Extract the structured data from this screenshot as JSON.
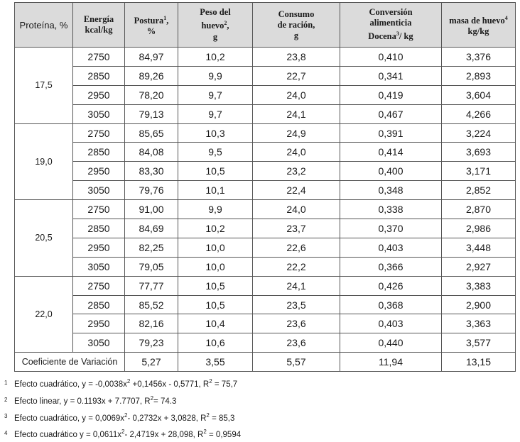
{
  "headers": {
    "protein": "Proteína, %",
    "energy_l1": "Energía",
    "energy_l2": "kcal/kg",
    "laying_l1": "Postura",
    "laying_sup": "1",
    "laying_l2": "%",
    "eggweight_l1": "Peso del",
    "eggweight_l2": "huevo",
    "eggweight_sup": "2",
    "eggweight_l3": "g",
    "intake_l1": "Consumo",
    "intake_l2": "de ración,",
    "intake_l3": "g",
    "conv_l1": "Conversión",
    "conv_l2": "alimenticia",
    "conv_l3": "Docena",
    "conv_sup": "3",
    "conv_l3b": "/ kg",
    "mass_l1": "masa de huevo",
    "mass_sup": "4",
    "mass_l2": "kg/kg"
  },
  "groups": [
    {
      "protein": "17,5",
      "rows": [
        {
          "energy": "2750",
          "laying": "84,97",
          "egg_weight": "10,2",
          "intake": "23,8",
          "conversion": "0,410",
          "egg_mass": "3,376"
        },
        {
          "energy": "2850",
          "laying": "89,26",
          "egg_weight": "9,9",
          "intake": "22,7",
          "conversion": "0,341",
          "egg_mass": "2,893"
        },
        {
          "energy": "2950",
          "laying": "78,20",
          "egg_weight": "9,7",
          "intake": "24,0",
          "conversion": "0,419",
          "egg_mass": "3,604"
        },
        {
          "energy": "3050",
          "laying": "79,13",
          "egg_weight": "9,7",
          "intake": "24,1",
          "conversion": "0,467",
          "egg_mass": "4,266"
        }
      ]
    },
    {
      "protein": "19,0",
      "rows": [
        {
          "energy": "2750",
          "laying": "85,65",
          "egg_weight": "10,3",
          "intake": "24,9",
          "conversion": "0,391",
          "egg_mass": "3,224"
        },
        {
          "energy": "2850",
          "laying": "84,08",
          "egg_weight": "9,5",
          "intake": "24,0",
          "conversion": "0,414",
          "egg_mass": "3,693"
        },
        {
          "energy": "2950",
          "laying": "83,30",
          "egg_weight": "10,5",
          "intake": "23,2",
          "conversion": "0,400",
          "egg_mass": "3,171"
        },
        {
          "energy": "3050",
          "laying": "79,76",
          "egg_weight": "10,1",
          "intake": "22,4",
          "conversion": "0,348",
          "egg_mass": "2,852"
        }
      ]
    },
    {
      "protein": "20,5",
      "rows": [
        {
          "energy": "2750",
          "laying": "91,00",
          "egg_weight": "9,9",
          "intake": "24,0",
          "conversion": "0,338",
          "egg_mass": "2,870"
        },
        {
          "energy": "2850",
          "laying": "84,69",
          "egg_weight": "10,2",
          "intake": "23,7",
          "conversion": "0,370",
          "egg_mass": "2,986"
        },
        {
          "energy": "2950",
          "laying": "82,25",
          "egg_weight": "10,0",
          "intake": "22,6",
          "conversion": "0,403",
          "egg_mass": "3,448"
        },
        {
          "energy": "3050",
          "laying": "79,05",
          "egg_weight": "10,0",
          "intake": "22,2",
          "conversion": "0,366",
          "egg_mass": "2,927"
        }
      ]
    },
    {
      "protein": "22,0",
      "rows": [
        {
          "energy": "2750",
          "laying": "77,77",
          "egg_weight": "10,5",
          "intake": "24,1",
          "conversion": "0,426",
          "egg_mass": "3,383"
        },
        {
          "energy": "2850",
          "laying": "85,52",
          "egg_weight": "10,5",
          "intake": "23,5",
          "conversion": "0,368",
          "egg_mass": "2,900"
        },
        {
          "energy": "2950",
          "laying": "82,16",
          "egg_weight": "10,4",
          "intake": "23,6",
          "conversion": "0,403",
          "egg_mass": "3,363"
        },
        {
          "energy": "3050",
          "laying": "79,23",
          "egg_weight": "10,6",
          "intake": "23,6",
          "conversion": "0,440",
          "egg_mass": "3,577"
        }
      ]
    }
  ],
  "cv": {
    "label": "Coeficiente de Variación",
    "laying": "5,27",
    "egg_weight": "3,55",
    "intake": "5,57",
    "conversion": "11,94",
    "egg_mass": "13,15"
  },
  "footnotes": [
    {
      "num": "1",
      "pre": "Efecto cuadrático, y = -0,0038x",
      "sup1": "2",
      "mid": " +0,1456x - 0,5771, R",
      "sup2": "2",
      "post": " = 75,7"
    },
    {
      "num": "2",
      "pre": "Efecto linear, y = 0.1193x + 7.7707, R",
      "sup1": "2",
      "mid": "",
      "sup2": "",
      "post": "= 74.3"
    },
    {
      "num": "3",
      "pre": "Efecto cuadrático, y = 0,0069x",
      "sup1": "2",
      "mid": "- 0,2732x + 3,0828, R",
      "sup2": "2",
      "post": " = 85,3"
    },
    {
      "num": "4",
      "pre": "Efecto cuadrático y = 0,0611x",
      "sup1": "2",
      "mid": "- 2,4719x + 28,098, R",
      "sup2": "2",
      "post": " = 0,9594"
    }
  ]
}
